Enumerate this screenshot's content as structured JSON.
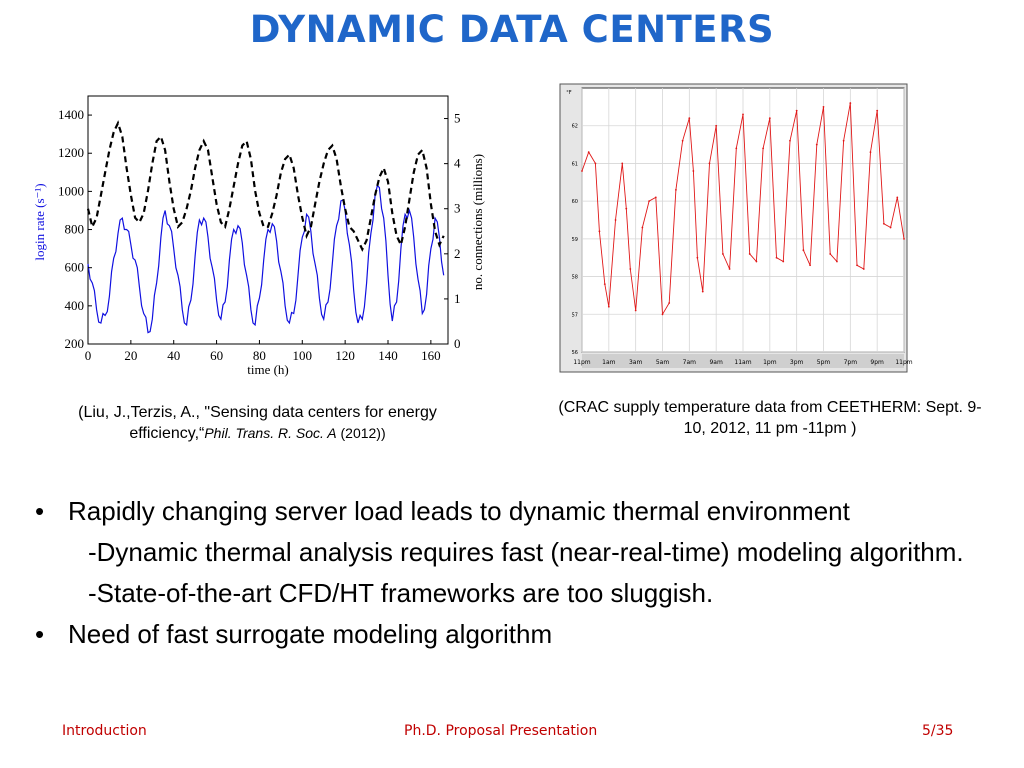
{
  "slide": {
    "title": "DYNAMIC DATA CENTERS",
    "caption_left": {
      "text": "(Liu, J.,Terzis, A., \"Sensing data centers for energy efficiency,“",
      "journal": "Phil. Trans. R. Soc. A",
      "year": " (2012))"
    },
    "caption_right": "(CRAC supply temperature data from CEETHERM: Sept. 9-10, 2012, 11 pm -11pm  )",
    "bullets": [
      "Rapidly changing server load leads to dynamic thermal environment",
      "Need of fast surrogate modeling algorithm"
    ],
    "sub_points": [
      "-Dynamic thermal analysis requires fast (near-real-time) modeling algorithm.",
      "-State-of-the-art CFD/HT frameworks are too sluggish."
    ],
    "bullet_glyph": "•",
    "footer": {
      "left": "Introduction",
      "center": "Ph.D. Proposal Presentation",
      "right": "5/35"
    }
  },
  "chart_data": [
    {
      "type": "line",
      "xlabel": "time (h)",
      "ylabel": "login rate (s⁻¹)",
      "y2label": "no. connections (millions)",
      "xlim": [
        0,
        168
      ],
      "ylim": [
        200,
        1500
      ],
      "y2lim": [
        0,
        5.5
      ],
      "xticks": [
        0,
        20,
        40,
        60,
        80,
        100,
        120,
        140,
        160
      ],
      "yticks": [
        200,
        400,
        600,
        800,
        1000,
        1200,
        1400
      ],
      "y2ticks": [
        0,
        1,
        2,
        3,
        4,
        5
      ],
      "colors": {
        "login": "#1010e0",
        "connections": "#000000"
      },
      "series": [
        {
          "axis": "left",
          "x": [
            0,
            2,
            4,
            6,
            8,
            10,
            12,
            14,
            16,
            18,
            20,
            22,
            24,
            26,
            28,
            30,
            32,
            34,
            36,
            38,
            40,
            42,
            44,
            46,
            48,
            50,
            52,
            54,
            56,
            58,
            60,
            62,
            64,
            66,
            68,
            70,
            72,
            74,
            76,
            78,
            80,
            82,
            84,
            86,
            88,
            90,
            92,
            94,
            96,
            98,
            100,
            102,
            104,
            106,
            108,
            110,
            112,
            114,
            116,
            118,
            120,
            122,
            124,
            126,
            128,
            130,
            132,
            134,
            136,
            138,
            140,
            142,
            144,
            146,
            148,
            150,
            152,
            154,
            156,
            158,
            160,
            162,
            164,
            166
          ],
          "values": [
            620,
            520,
            380,
            310,
            350,
            450,
            650,
            780,
            860,
            800,
            720,
            640,
            500,
            360,
            260,
            330,
            520,
            760,
            900,
            820,
            700,
            560,
            380,
            300,
            430,
            660,
            850,
            860,
            760,
            600,
            430,
            330,
            420,
            640,
            800,
            820,
            730,
            560,
            380,
            300,
            440,
            640,
            800,
            830,
            740,
            580,
            400,
            310,
            360,
            560,
            760,
            880,
            790,
            620,
            440,
            330,
            420,
            620,
            820,
            950,
            900,
            720,
            480,
            310,
            330,
            520,
            780,
            980,
            1020,
            860,
            560,
            320,
            420,
            700,
            880,
            900,
            760,
            540,
            360,
            460,
            700,
            860,
            760,
            560
          ]
        },
        {
          "axis": "right",
          "x": [
            0,
            2,
            4,
            6,
            8,
            10,
            12,
            14,
            16,
            18,
            20,
            22,
            24,
            26,
            28,
            30,
            32,
            34,
            36,
            38,
            40,
            42,
            44,
            46,
            48,
            50,
            52,
            54,
            56,
            58,
            60,
            62,
            64,
            66,
            68,
            70,
            72,
            74,
            76,
            78,
            80,
            82,
            84,
            86,
            88,
            90,
            92,
            94,
            96,
            98,
            100,
            102,
            104,
            106,
            108,
            110,
            112,
            114,
            116,
            118,
            120,
            122,
            124,
            126,
            128,
            130,
            132,
            134,
            136,
            138,
            140,
            142,
            144,
            146,
            148,
            150,
            152,
            154,
            156,
            158,
            160,
            162,
            164,
            166
          ],
          "values": [
            3.0,
            2.6,
            2.8,
            3.3,
            3.8,
            4.3,
            4.7,
            4.9,
            4.6,
            3.9,
            3.3,
            2.8,
            2.7,
            2.9,
            3.4,
            4.0,
            4.5,
            4.6,
            4.3,
            3.6,
            3.0,
            2.6,
            2.7,
            3.0,
            3.4,
            3.9,
            4.3,
            4.5,
            4.3,
            3.7,
            3.1,
            2.7,
            2.6,
            3.0,
            3.5,
            4.0,
            4.4,
            4.5,
            4.1,
            3.4,
            2.9,
            2.6,
            2.6,
            2.9,
            3.3,
            3.8,
            4.1,
            4.2,
            3.9,
            3.3,
            2.8,
            2.4,
            2.6,
            3.1,
            3.6,
            4.0,
            4.3,
            4.4,
            4.1,
            3.5,
            3.0,
            2.6,
            2.5,
            2.3,
            2.1,
            2.3,
            2.8,
            3.3,
            3.7,
            3.9,
            3.6,
            2.9,
            2.4,
            2.2,
            2.6,
            3.2,
            3.8,
            4.2,
            4.3,
            3.9,
            3.1,
            2.5,
            2.2,
            2.4
          ]
        }
      ]
    },
    {
      "type": "line",
      "xlabel": "",
      "ylabel": "°F",
      "ylim": [
        56,
        63
      ],
      "yticks": [
        56,
        57,
        58,
        59,
        60,
        61,
        62
      ],
      "xticks": [
        "11pm",
        "1am",
        "3am",
        "5am",
        "7am",
        "9am",
        "11am",
        "1pm",
        "3pm",
        "5pm",
        "7pm",
        "9pm",
        "11pm"
      ],
      "colors": {
        "line": "#e01818"
      },
      "series": [
        {
          "x": [
            0,
            0.5,
            1,
            1.3,
            1.7,
            2.0,
            2.5,
            3.0,
            3.3,
            3.6,
            4.0,
            4.5,
            5.0,
            5.5,
            6.0,
            6.5,
            7.0,
            7.5,
            8.0,
            8.3,
            8.6,
            9.0,
            9.5,
            10.0,
            10.5,
            11.0,
            11.5,
            12.0,
            12.5,
            13.0,
            13.5,
            14.0,
            14.5,
            15.0,
            15.5,
            16.0,
            16.5,
            17.0,
            17.5,
            18.0,
            18.5,
            19.0,
            19.5,
            20.0,
            20.5,
            21.0,
            21.5,
            22.0,
            22.5,
            23.0,
            23.5,
            24.0
          ],
          "values": [
            60.8,
            61.3,
            61.0,
            59.2,
            57.8,
            57.2,
            59.5,
            61.0,
            59.8,
            58.2,
            57.1,
            59.3,
            60.0,
            60.1,
            57.0,
            57.3,
            60.3,
            61.6,
            62.2,
            60.8,
            58.5,
            57.6,
            61.0,
            62.0,
            58.6,
            58.2,
            61.4,
            62.3,
            58.6,
            58.4,
            61.4,
            62.2,
            58.5,
            58.4,
            61.6,
            62.4,
            58.7,
            58.3,
            61.5,
            62.5,
            58.6,
            58.4,
            61.6,
            62.6,
            58.3,
            58.2,
            61.3,
            62.4,
            59.4,
            59.3,
            60.1,
            59.0
          ]
        }
      ]
    }
  ]
}
